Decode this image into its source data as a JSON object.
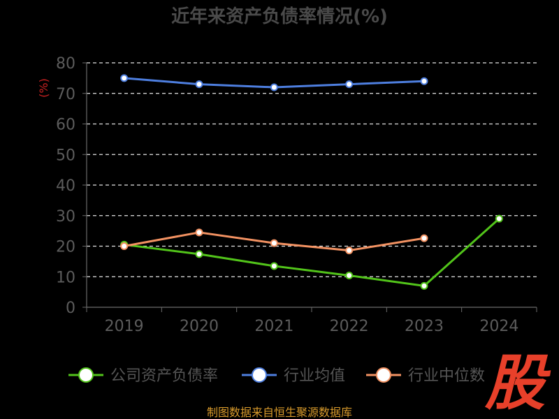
{
  "chart_data": {
    "type": "line",
    "title": "近年来资产负债率情况(%)",
    "ylabel": "(%)",
    "xlabel": "",
    "categories": [
      "2019",
      "2020",
      "2021",
      "2022",
      "2023",
      "2024"
    ],
    "ylim": [
      0,
      80
    ],
    "yticks": [
      "0",
      "10",
      "20",
      "30",
      "40",
      "50",
      "60",
      "70",
      "80"
    ],
    "grid": true,
    "legend_position": "bottom",
    "series": [
      {
        "name": "公司资产负债率",
        "color": "#52c41a",
        "values": [
          20.5,
          17.4,
          13.5,
          10.4,
          7.0,
          29.0
        ]
      },
      {
        "name": "行业均值",
        "color": "#4e7fe0",
        "values": [
          75.0,
          73.0,
          72.0,
          73.0,
          74.0,
          null
        ]
      },
      {
        "name": "行业中位数",
        "color": "#f39262",
        "values": [
          20.0,
          24.5,
          21.0,
          18.6,
          22.6,
          null
        ]
      }
    ]
  },
  "source": "制图数据来自恒生聚源数据库",
  "watermark": "股",
  "colors": {
    "background": "#000000",
    "title": "#4a4a4a",
    "axis": "#6b6b6b",
    "tick_label": "#5c5c5c",
    "ylabel": "#cc2222",
    "source": "#d89a2b",
    "watermark": "#e8402a",
    "legend_text": "#555555"
  }
}
